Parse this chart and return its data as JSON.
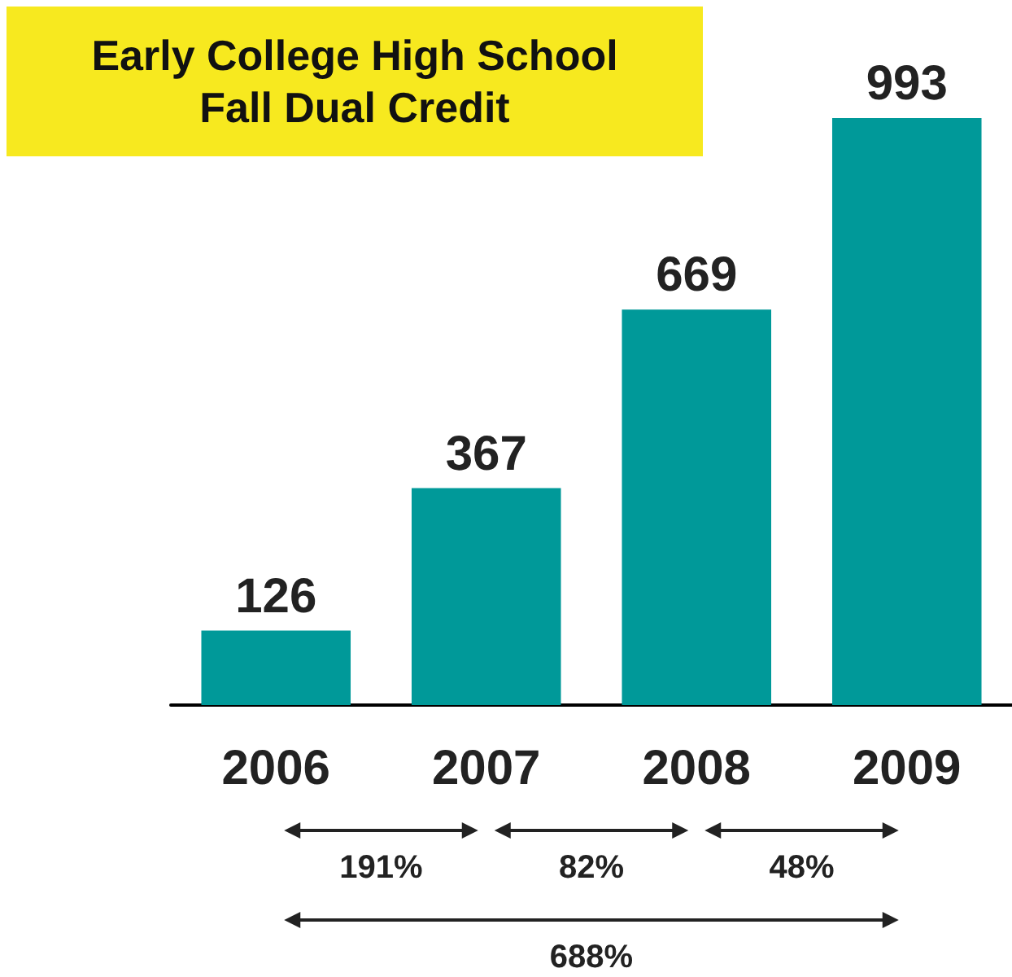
{
  "chart_data": {
    "type": "bar",
    "title": "Early College High School\nFall Dual Credit",
    "categories": [
      "2006",
      "2007",
      "2008",
      "2009"
    ],
    "values": [
      126,
      367,
      669,
      993
    ],
    "color": "#009999",
    "data_labels": true,
    "annotations": [
      "191%",
      "82%",
      "48%",
      "688%"
    ]
  }
}
